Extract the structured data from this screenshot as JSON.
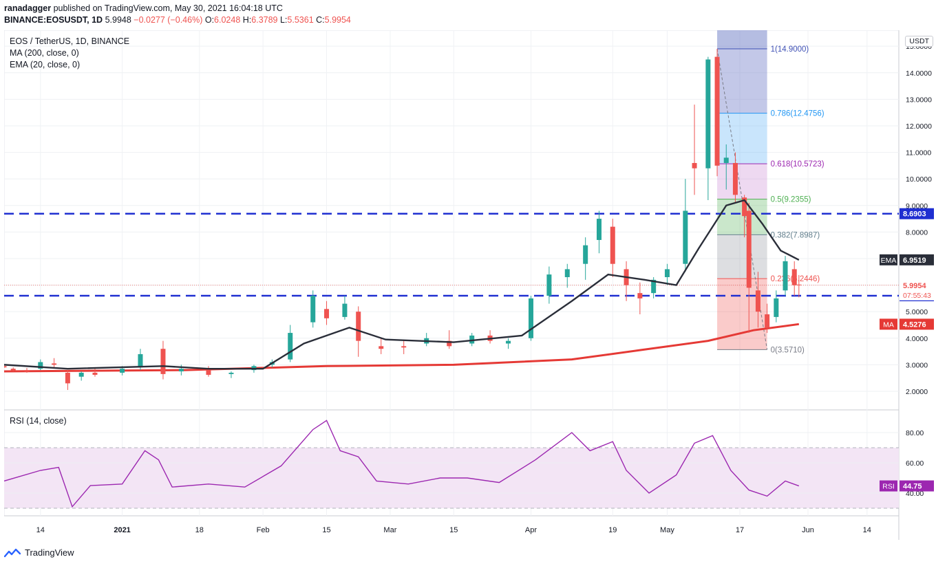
{
  "header": {
    "publisher": "ranadagger",
    "published_text": "published on TradingView.com, May 30, 2021 16:04:18 UTC",
    "symbol_line": "BINANCE:EOSUSDT, 1D",
    "last": "5.9948",
    "change": "−0.0277 (−0.46%)",
    "o_label": "O:",
    "o": "6.0248",
    "h_label": "H:",
    "h": "6.3789",
    "l_label": "L:",
    "l": "5.5361",
    "c_label": "C:",
    "c": "5.9954"
  },
  "legend": {
    "title": "EOS / TetherUS, 1D, BINANCE",
    "ma": "MA (200, close, 0)",
    "ema": "EMA (20, close, 0)",
    "rsi": "RSI (14, close)"
  },
  "currency_badge": "USDT",
  "footer": {
    "brand": "TradingView"
  },
  "colors": {
    "up": "#26a69a",
    "down": "#ef5350",
    "ema": "#2a2e39",
    "ma": "#e53935",
    "level": "#1f2fd1",
    "rsi": "#9c27b0",
    "rsi_band": "#f3e5f5"
  },
  "chart_data": [
    {
      "type": "candlestick",
      "title": "EOS / TetherUS, 1D, BINANCE",
      "ylim": [
        1.3,
        15.6
      ],
      "y_ticks": [
        "2.0000",
        "3.0000",
        "4.0000",
        "5.0000",
        "6.0000",
        "7.0000",
        "8.0000",
        "9.0000",
        "10.0000",
        "11.0000",
        "12.0000",
        "13.0000",
        "14.0000",
        "15.0000"
      ],
      "x_ticks": [
        "14",
        "2021",
        "18",
        "Feb",
        "15",
        "Mar",
        "15",
        "Apr",
        "19",
        "May",
        "17",
        "Jun",
        "14"
      ],
      "candles": [
        [
          "2020-12-06",
          2.95,
          3.0,
          2.88,
          2.9
        ],
        [
          "2020-12-08",
          2.85,
          2.9,
          2.75,
          2.78
        ],
        [
          "2020-12-11",
          2.8,
          2.88,
          2.7,
          2.75
        ],
        [
          "2020-12-14",
          2.85,
          3.2,
          2.8,
          3.1
        ],
        [
          "2020-12-17",
          3.05,
          3.25,
          2.9,
          3.0
        ],
        [
          "2020-12-20",
          2.7,
          2.8,
          2.05,
          2.3
        ],
        [
          "2020-12-23",
          2.55,
          2.75,
          2.4,
          2.7
        ],
        [
          "2020-12-26",
          2.7,
          2.85,
          2.55,
          2.62
        ],
        [
          "2021-01-01",
          2.7,
          2.95,
          2.6,
          2.85
        ],
        [
          "2021-01-05",
          2.9,
          3.6,
          2.8,
          3.4
        ],
        [
          "2021-01-10",
          3.6,
          3.9,
          2.45,
          2.65
        ],
        [
          "2021-01-14",
          2.75,
          3.0,
          2.6,
          2.85
        ],
        [
          "2021-01-20",
          2.8,
          2.95,
          2.55,
          2.62
        ],
        [
          "2021-01-25",
          2.65,
          2.75,
          2.5,
          2.7
        ],
        [
          "2021-01-30",
          2.8,
          3.0,
          2.7,
          2.95
        ],
        [
          "2021-02-03",
          3.0,
          3.2,
          2.9,
          3.1
        ],
        [
          "2021-02-07",
          3.2,
          4.5,
          3.1,
          4.2
        ],
        [
          "2021-02-12",
          4.6,
          5.8,
          4.4,
          5.6
        ],
        [
          "2021-02-15",
          5.1,
          5.4,
          4.5,
          4.75
        ],
        [
          "2021-02-19",
          4.8,
          5.6,
          4.7,
          5.3
        ],
        [
          "2021-02-22",
          5.0,
          5.2,
          3.3,
          3.9
        ],
        [
          "2021-02-27",
          3.7,
          4.0,
          3.4,
          3.6
        ],
        [
          "2021-03-04",
          3.7,
          3.9,
          3.4,
          3.65
        ],
        [
          "2021-03-09",
          3.8,
          4.2,
          3.7,
          4.0
        ],
        [
          "2021-03-14",
          3.9,
          4.3,
          3.6,
          3.7
        ],
        [
          "2021-03-19",
          3.8,
          4.2,
          3.7,
          4.1
        ],
        [
          "2021-03-23",
          4.1,
          4.3,
          3.8,
          3.9
        ],
        [
          "2021-03-27",
          3.8,
          4.0,
          3.6,
          3.9
        ],
        [
          "2021-04-01",
          4.0,
          5.6,
          3.9,
          5.5
        ],
        [
          "2021-04-05",
          5.6,
          6.7,
          5.3,
          6.4
        ],
        [
          "2021-04-09",
          6.3,
          6.8,
          5.9,
          6.6
        ],
        [
          "2021-04-13",
          6.8,
          7.8,
          6.2,
          7.5
        ],
        [
          "2021-04-16",
          7.7,
          8.8,
          7.2,
          8.5
        ],
        [
          "2021-04-19",
          8.2,
          8.5,
          6.3,
          6.8
        ],
        [
          "2021-04-22",
          6.6,
          6.9,
          5.4,
          6.0
        ],
        [
          "2021-04-25",
          5.7,
          6.1,
          4.9,
          5.5
        ],
        [
          "2021-04-28",
          5.7,
          6.3,
          5.5,
          6.2
        ],
        [
          "2021-05-01",
          6.3,
          6.8,
          6.0,
          6.6
        ],
        [
          "2021-05-05",
          6.8,
          10.0,
          6.5,
          8.8
        ],
        [
          "2021-05-07",
          10.6,
          12.8,
          9.4,
          10.4
        ],
        [
          "2021-05-10",
          10.4,
          14.6,
          9.2,
          14.5
        ],
        [
          "2021-05-12",
          14.6,
          14.9,
          10.1,
          10.5
        ],
        [
          "2021-05-14",
          10.6,
          11.3,
          9.6,
          10.8
        ],
        [
          "2021-05-16",
          10.6,
          11.0,
          9.1,
          9.4
        ],
        [
          "2021-05-18",
          9.3,
          9.4,
          7.8,
          8.6
        ],
        [
          "2021-05-19",
          8.8,
          9.1,
          4.2,
          5.9
        ],
        [
          "2021-05-21",
          5.8,
          6.5,
          4.4,
          5.0
        ],
        [
          "2021-05-23",
          4.9,
          5.3,
          4.2,
          4.4
        ],
        [
          "2021-05-25",
          4.8,
          5.8,
          4.6,
          5.5
        ],
        [
          "2021-05-27",
          5.8,
          7.1,
          5.6,
          6.9
        ],
        [
          "2021-05-29",
          6.6,
          6.9,
          5.6,
          6.0
        ],
        [
          "2021-05-30",
          6.02,
          6.38,
          5.54,
          6.0
        ]
      ],
      "ema20": [
        [
          "2020-12-06",
          3.0
        ],
        [
          "2020-12-20",
          2.85
        ],
        [
          "2021-01-10",
          2.95
        ],
        [
          "2021-01-20",
          2.85
        ],
        [
          "2021-02-01",
          2.85
        ],
        [
          "2021-02-10",
          3.8
        ],
        [
          "2021-02-20",
          4.4
        ],
        [
          "2021-02-28",
          3.95
        ],
        [
          "2021-03-15",
          3.85
        ],
        [
          "2021-03-30",
          4.1
        ],
        [
          "2021-04-10",
          5.4
        ],
        [
          "2021-04-18",
          6.4
        ],
        [
          "2021-04-26",
          6.2
        ],
        [
          "2021-05-03",
          6.0
        ],
        [
          "2021-05-08",
          7.4
        ],
        [
          "2021-05-14",
          9.0
        ],
        [
          "2021-05-18",
          9.2
        ],
        [
          "2021-05-22",
          8.3
        ],
        [
          "2021-05-26",
          7.3
        ],
        [
          "2021-05-30",
          6.95
        ]
      ],
      "ma200": [
        [
          "2020-12-06",
          2.75
        ],
        [
          "2021-01-15",
          2.8
        ],
        [
          "2021-02-15",
          2.95
        ],
        [
          "2021-03-15",
          3.0
        ],
        [
          "2021-04-10",
          3.2
        ],
        [
          "2021-04-25",
          3.55
        ],
        [
          "2021-05-10",
          3.9
        ],
        [
          "2021-05-20",
          4.3
        ],
        [
          "2021-05-30",
          4.53
        ]
      ],
      "horizontal_levels": [
        {
          "label": "8.6903",
          "value": 8.6903
        },
        {
          "label": "5.6000",
          "value": 5.6
        }
      ],
      "price_labels": [
        {
          "label": "EMA",
          "value_text": "6.9519",
          "value": 6.9519
        },
        {
          "label": "MA",
          "value_text": "4.5276",
          "value": 4.5276
        },
        {
          "label": "",
          "value_text": "5.9954",
          "value": 5.9954,
          "sub": "07:55:43"
        }
      ],
      "fibonacci": {
        "high": 14.9,
        "low": 3.571,
        "levels": [
          {
            "ratio": 1,
            "text": "1(14.9000)",
            "value": 14.9
          },
          {
            "ratio": 0.786,
            "text": "0.786(12.4756)",
            "value": 12.4756
          },
          {
            "ratio": 0.618,
            "text": "0.618(10.5723)",
            "value": 10.5723
          },
          {
            "ratio": 0.5,
            "text": "0.5(9.2355)",
            "value": 9.2355
          },
          {
            "ratio": 0.382,
            "text": "0.382(7.8987)",
            "value": 7.8987
          },
          {
            "ratio": 0.236,
            "text": "0.236(6.2446)",
            "value": 6.2446
          },
          {
            "ratio": 0,
            "text": "0(3.5710)",
            "value": 3.571
          }
        ]
      }
    },
    {
      "type": "line",
      "title": "RSI (14, close)",
      "ylim": [
        25,
        95
      ],
      "y_ticks": [
        "40.00",
        "60.00",
        "80.00"
      ],
      "band": [
        30,
        70
      ],
      "current_label": "RSI",
      "current_value_text": "44.75",
      "series": [
        [
          "2020-12-06",
          48
        ],
        [
          "2020-12-14",
          55
        ],
        [
          "2020-12-18",
          57
        ],
        [
          "2020-12-21",
          31
        ],
        [
          "2020-12-25",
          45
        ],
        [
          "2021-01-01",
          46
        ],
        [
          "2021-01-06",
          68
        ],
        [
          "2021-01-09",
          62
        ],
        [
          "2021-01-12",
          44
        ],
        [
          "2021-01-20",
          46
        ],
        [
          "2021-01-28",
          44
        ],
        [
          "2021-02-05",
          58
        ],
        [
          "2021-02-12",
          82
        ],
        [
          "2021-02-15",
          88
        ],
        [
          "2021-02-18",
          68
        ],
        [
          "2021-02-22",
          64
        ],
        [
          "2021-02-26",
          48
        ],
        [
          "2021-03-05",
          46
        ],
        [
          "2021-03-12",
          50
        ],
        [
          "2021-03-18",
          50
        ],
        [
          "2021-03-25",
          47
        ],
        [
          "2021-04-02",
          62
        ],
        [
          "2021-04-10",
          80
        ],
        [
          "2021-04-14",
          68
        ],
        [
          "2021-04-19",
          74
        ],
        [
          "2021-04-22",
          55
        ],
        [
          "2021-04-27",
          40
        ],
        [
          "2021-05-03",
          52
        ],
        [
          "2021-05-07",
          73
        ],
        [
          "2021-05-11",
          78
        ],
        [
          "2021-05-15",
          55
        ],
        [
          "2021-05-19",
          42
        ],
        [
          "2021-05-23",
          38
        ],
        [
          "2021-05-27",
          48
        ],
        [
          "2021-05-30",
          44.75
        ]
      ]
    }
  ]
}
